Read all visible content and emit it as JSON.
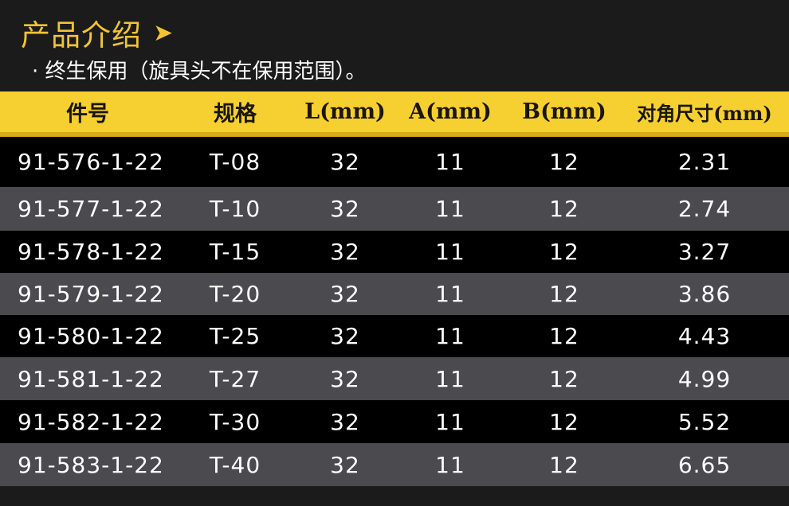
{
  "title": "产品介绍",
  "title_icon": "arrow-right-icon",
  "note": "· 终生保用（旋具头不在保用范围）。",
  "colors": {
    "accent": "#f6cf30",
    "background": "#1b1b1b",
    "row_dark": "#000000",
    "row_gray": "#4a4a4f"
  },
  "table": {
    "headers": [
      "件号",
      "规格",
      "L(mm)",
      "A(mm)",
      "B(mm)",
      "对角尺寸(mm)"
    ],
    "rows": [
      [
        "91-576-1-22",
        "T-08",
        "32",
        "11",
        "12",
        "2.31"
      ],
      [
        "91-577-1-22",
        "T-10",
        "32",
        "11",
        "12",
        "2.74"
      ],
      [
        "91-578-1-22",
        "T-15",
        "32",
        "11",
        "12",
        "3.27"
      ],
      [
        "91-579-1-22",
        "T-20",
        "32",
        "11",
        "12",
        "3.86"
      ],
      [
        "91-580-1-22",
        "T-25",
        "32",
        "11",
        "12",
        "4.43"
      ],
      [
        "91-581-1-22",
        "T-27",
        "32",
        "11",
        "12",
        "4.99"
      ],
      [
        "91-582-1-22",
        "T-30",
        "32",
        "11",
        "12",
        "5.52"
      ],
      [
        "91-583-1-22",
        "T-40",
        "32",
        "11",
        "12",
        "6.65"
      ]
    ]
  }
}
